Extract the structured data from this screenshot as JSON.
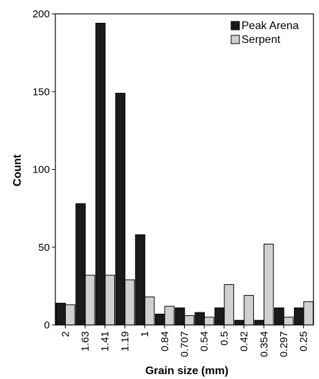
{
  "chart_data": {
    "type": "bar",
    "title": "",
    "xlabel": "Grain size (mm)",
    "ylabel": "Count",
    "ylim": [
      0,
      200
    ],
    "yticks": [
      0,
      50,
      100,
      150,
      200
    ],
    "categories": [
      "2",
      "1.63",
      "1.41",
      "1.19",
      "1",
      "0.84",
      "0.707",
      "0.54",
      "0.5",
      "0.42",
      "0.354",
      "0.297",
      "0.25"
    ],
    "series": [
      {
        "name": "Peak Arena",
        "color": "#1a1a1a",
        "values": [
          14,
          78,
          194,
          149,
          58,
          7,
          11,
          8,
          11,
          3,
          3,
          11,
          11
        ]
      },
      {
        "name": "Serpent",
        "color": "#d0d0d0",
        "values": [
          13,
          32,
          32,
          29,
          18,
          12,
          6,
          5,
          26,
          19,
          52,
          5,
          15
        ]
      }
    ],
    "legend_position": "top-right",
    "grid": false
  }
}
